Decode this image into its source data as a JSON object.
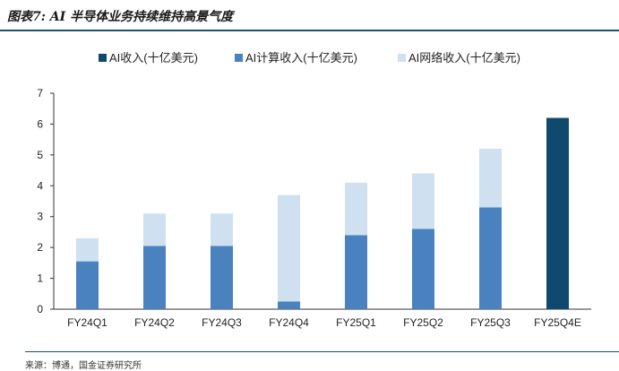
{
  "header": {
    "title": "图表7: AI 半导体业务持续维持高景气度"
  },
  "source_note": "来源：博通，国金证券研究所",
  "colors": {
    "title_rule": "#1d4f6f"
  },
  "chart_data": {
    "type": "bar",
    "stacked": true,
    "categories": [
      "FY24Q1",
      "FY24Q2",
      "FY24Q3",
      "FY24Q4",
      "FY25Q1",
      "FY25Q2",
      "FY25Q3",
      "FY25Q4E"
    ],
    "series": [
      {
        "name": "AI收入(十亿美元)",
        "color": "#0f4a6e",
        "values": [
          null,
          null,
          null,
          null,
          null,
          null,
          null,
          6.2
        ]
      },
      {
        "name": "AI计算收入(十亿美元)",
        "color": "#4a82c0",
        "values": [
          1.55,
          2.05,
          2.05,
          0.25,
          2.4,
          2.6,
          3.3,
          null
        ]
      },
      {
        "name": "AI网络收入(十亿美元)",
        "color": "#cfe1f1",
        "values": [
          0.75,
          1.05,
          1.05,
          3.45,
          1.7,
          1.8,
          1.9,
          null
        ]
      }
    ],
    "ylim": [
      0,
      7
    ],
    "yticks": [
      0,
      1,
      2,
      3,
      4,
      5,
      6,
      7
    ],
    "grid": false,
    "legend_position": "top"
  }
}
